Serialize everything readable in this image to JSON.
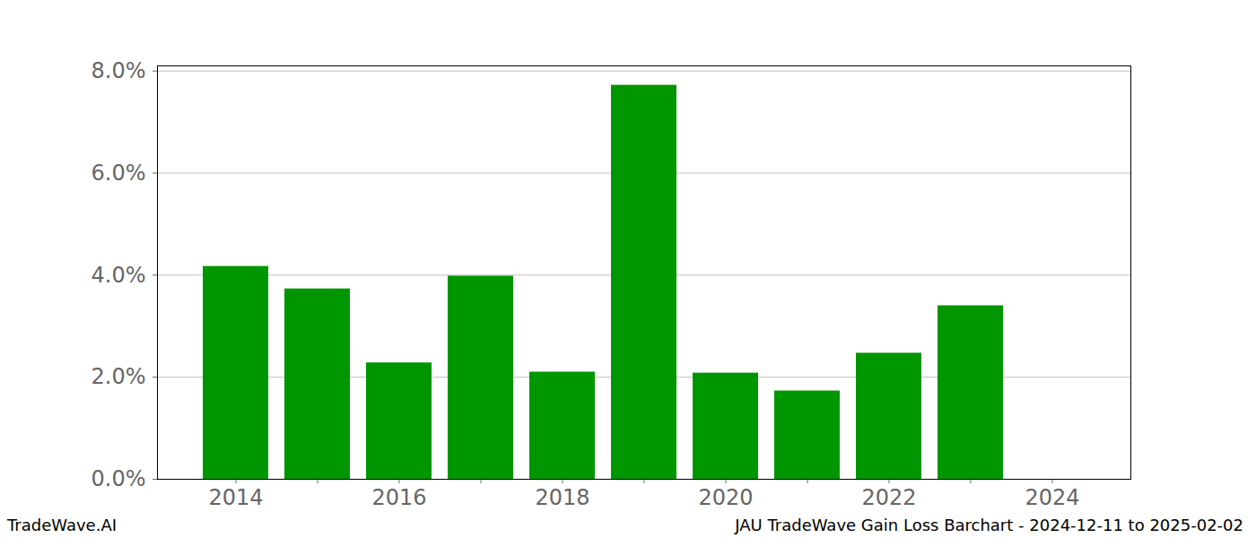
{
  "chart_data": {
    "type": "bar",
    "title": "JAU TradeWave Gain Loss Barchart - 2024-12-11 to 2025-02-02",
    "annotations": [
      "TradeWave.AI"
    ],
    "categories": [
      "2014",
      null,
      "2016",
      null,
      "2018",
      null,
      "2020",
      null,
      "2022",
      null,
      "2024"
    ],
    "values": [
      4.17,
      3.73,
      2.28,
      3.98,
      2.1,
      7.72,
      2.08,
      1.73,
      2.47,
      3.4,
      null
    ],
    "color": "#009600",
    "ylim": [
      0,
      8.1
    ],
    "yticks": [
      {
        "value": 0,
        "label": "0.0%"
      },
      {
        "value": 2,
        "label": "2.0%"
      },
      {
        "value": 4,
        "label": "4.0%"
      },
      {
        "value": 6,
        "label": "6.0%"
      },
      {
        "value": 8,
        "label": "8.0%"
      }
    ],
    "grid": true
  }
}
